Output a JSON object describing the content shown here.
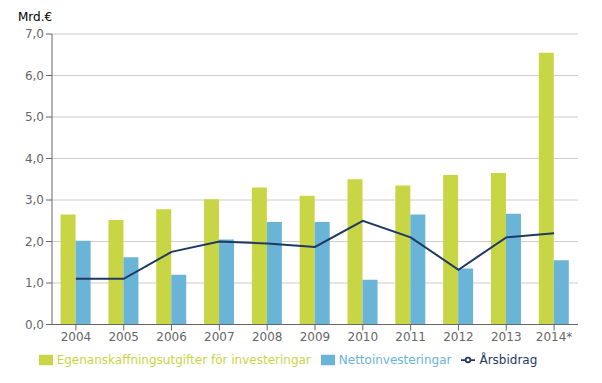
{
  "chart_data": {
    "type": "bar",
    "ylabel": "Mrd.€",
    "categories": [
      "2004",
      "2005",
      "2006",
      "2007",
      "2008",
      "2009",
      "2010",
      "2011",
      "2012",
      "2013",
      "2014*"
    ],
    "series": [
      {
        "name": "Egenanskaffningsutgifter för investeringar",
        "color": "#c8d645",
        "values": [
          2.65,
          2.52,
          2.78,
          3.02,
          3.3,
          3.1,
          3.5,
          3.35,
          3.6,
          3.65,
          6.55
        ]
      },
      {
        "name": "Nettoinvesteringar",
        "color": "#6ab4d8",
        "values": [
          2.02,
          1.62,
          1.2,
          2.05,
          2.47,
          2.47,
          1.08,
          2.65,
          1.35,
          2.67,
          1.55
        ]
      },
      {
        "name": "Årsbidrag",
        "type": "line",
        "color": "#1f3864",
        "values": [
          1.1,
          1.1,
          1.75,
          2.0,
          1.95,
          1.87,
          2.5,
          2.1,
          1.32,
          2.1,
          2.2
        ]
      }
    ],
    "ylim": [
      0,
      7.0
    ],
    "yticks": [
      {
        "value": 0.0,
        "label": "0,0"
      },
      {
        "value": 1.0,
        "label": "1,0"
      },
      {
        "value": 2.0,
        "label": "2,0"
      },
      {
        "value": 3.0,
        "label": "3,0"
      },
      {
        "value": 4.0,
        "label": "4,0"
      },
      {
        "value": 5.0,
        "label": "5,0"
      },
      {
        "value": 6.0,
        "label": "6,0"
      },
      {
        "value": 7.0,
        "label": "7,0"
      }
    ],
    "grid": true,
    "legend": "bottom"
  }
}
